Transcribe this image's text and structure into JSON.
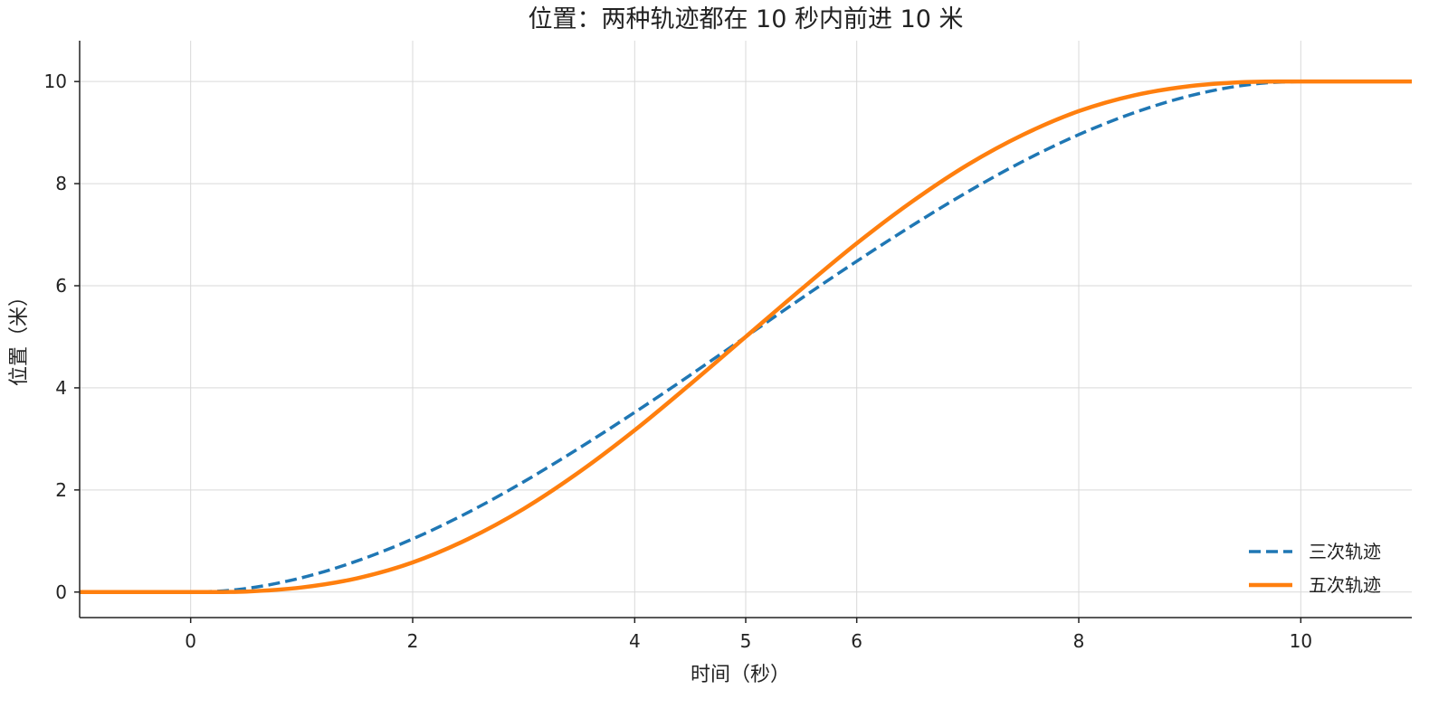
{
  "chart_data": {
    "type": "line",
    "title": "位置：两种轨迹都在 10 秒内前进 10 米",
    "xlabel": "时间（秒）",
    "ylabel": "位置（米）",
    "xlim": [
      -1,
      11
    ],
    "ylim": [
      -0.5,
      10.8
    ],
    "x_ticks": [
      0,
      2,
      4,
      5,
      6,
      8,
      10
    ],
    "y_ticks": [
      0,
      2,
      4,
      6,
      8,
      10
    ],
    "grid": true,
    "legend_position": "bottom-right",
    "series": [
      {
        "name": "三次轨迹",
        "style": "dashed",
        "color": "#1f77b4",
        "x": [
          -1,
          0,
          0.5,
          1,
          1.5,
          2,
          2.5,
          3,
          3.5,
          4,
          4.5,
          5,
          5.5,
          6,
          6.5,
          7,
          7.5,
          8,
          8.5,
          9,
          9.5,
          10,
          11
        ],
        "y": [
          0,
          0,
          0.07,
          0.28,
          0.61,
          1.04,
          1.56,
          2.16,
          2.82,
          3.52,
          4.25,
          5,
          5.75,
          6.48,
          7.18,
          7.84,
          8.44,
          8.96,
          9.39,
          9.72,
          9.93,
          10,
          10
        ]
      },
      {
        "name": "五次轨迹",
        "style": "solid",
        "color": "#ff7f0e",
        "x": [
          -1,
          0,
          0.5,
          1,
          1.5,
          2,
          2.5,
          3,
          3.5,
          4,
          4.5,
          5,
          5.5,
          6,
          6.5,
          7,
          7.5,
          8,
          8.5,
          9,
          9.5,
          10,
          11
        ],
        "y": [
          0,
          0,
          0.01,
          0.09,
          0.27,
          0.58,
          1.04,
          1.63,
          2.35,
          3.17,
          4.07,
          5,
          5.93,
          6.83,
          7.65,
          8.37,
          8.96,
          9.42,
          9.73,
          9.91,
          9.99,
          10,
          10
        ]
      }
    ]
  }
}
